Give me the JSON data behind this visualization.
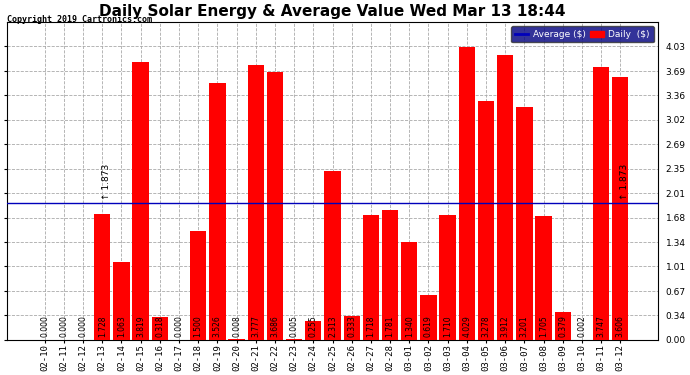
{
  "title": "Daily Solar Energy & Average Value Wed Mar 13 18:44",
  "copyright": "Copyright 2019 Cartronics.com",
  "categories": [
    "02-10",
    "02-11",
    "02-12",
    "02-13",
    "02-14",
    "02-15",
    "02-16",
    "02-17",
    "02-18",
    "02-19",
    "02-20",
    "02-21",
    "02-22",
    "02-23",
    "02-24",
    "02-25",
    "02-26",
    "02-27",
    "02-28",
    "03-01",
    "03-02",
    "03-03",
    "03-04",
    "03-05",
    "03-06",
    "03-07",
    "03-08",
    "03-09",
    "03-10",
    "03-11",
    "03-12"
  ],
  "values": [
    0.0,
    0.0,
    0.0,
    1.728,
    1.063,
    3.819,
    0.318,
    0.0,
    1.5,
    3.526,
    0.008,
    3.777,
    3.686,
    0.005,
    0.255,
    2.313,
    0.333,
    1.718,
    1.781,
    1.34,
    0.619,
    1.71,
    4.029,
    3.278,
    3.912,
    3.201,
    1.705,
    0.379,
    0.002,
    3.747,
    3.606
  ],
  "average": 1.873,
  "bar_color": "#ff0000",
  "avg_line_color": "#0000bb",
  "ylim": [
    0,
    4.37
  ],
  "yticks": [
    0.0,
    0.34,
    0.67,
    1.01,
    1.34,
    1.68,
    2.01,
    2.35,
    2.69,
    3.02,
    3.36,
    3.69,
    4.03
  ],
  "background_color": "#ffffff",
  "grid_color": "#aaaaaa",
  "title_fontsize": 11,
  "tick_fontsize": 6.5,
  "val_fontsize": 5.5,
  "avg_label": "Average ($)",
  "daily_label": "Daily  ($)",
  "legend_avg_color": "#0000bb",
  "legend_daily_color": "#ff0000",
  "legend_bg": "#000080"
}
